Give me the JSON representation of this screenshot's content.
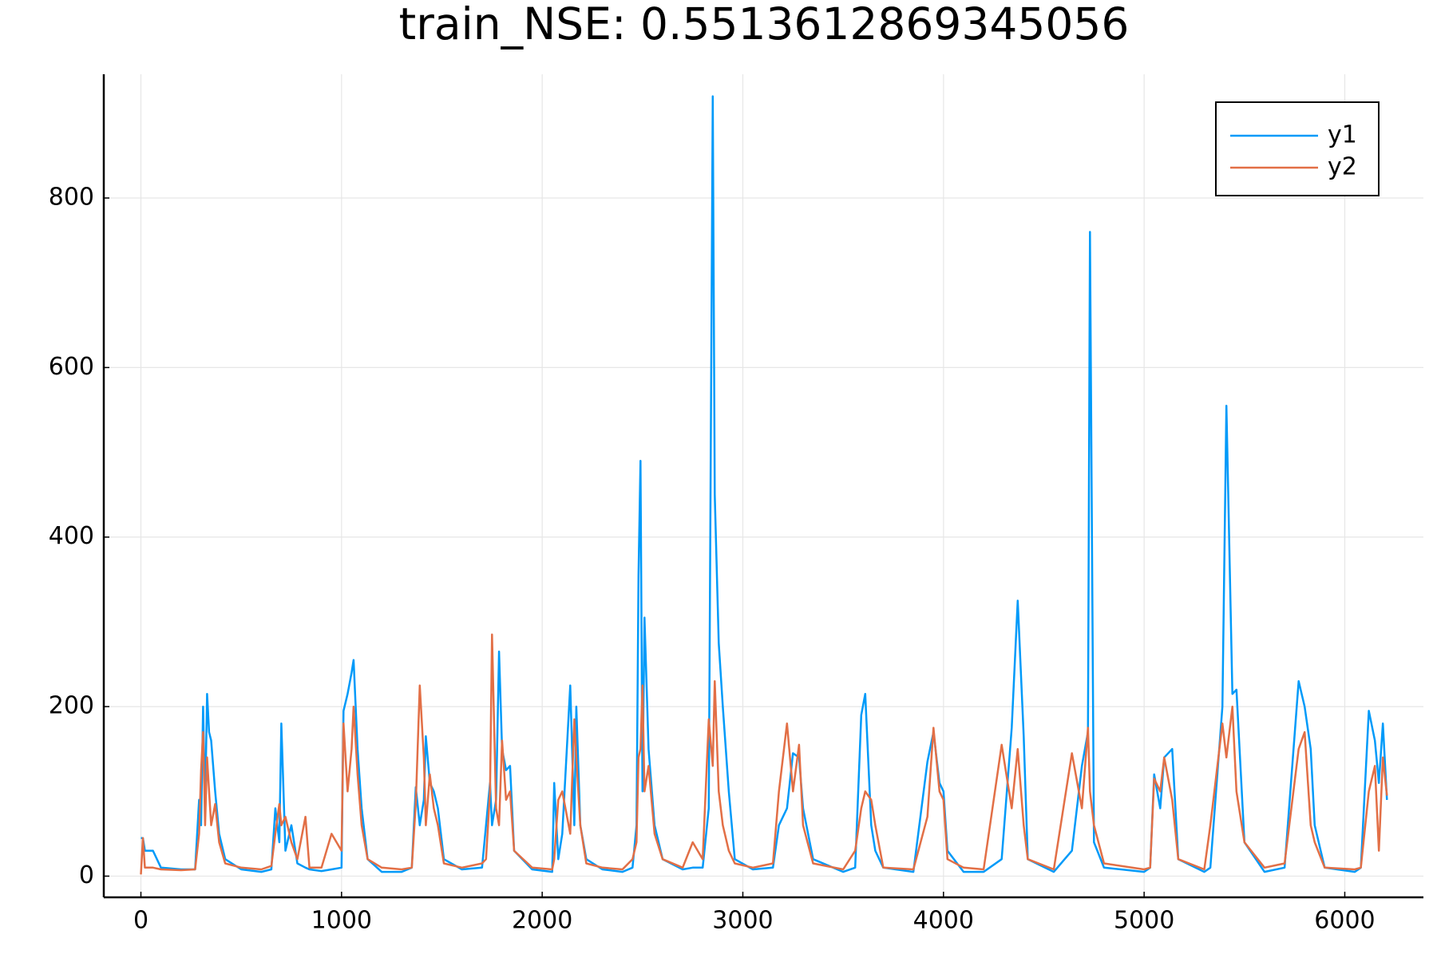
{
  "chart_data": {
    "type": "line",
    "title": "train_NSE: 0.5513612869345056",
    "x": [
      0,
      10,
      20,
      60,
      100,
      200,
      270,
      290,
      300,
      310,
      320,
      330,
      340,
      350,
      370,
      390,
      420,
      500,
      600,
      650,
      670,
      690,
      700,
      720,
      750,
      780,
      820,
      840,
      900,
      950,
      1000,
      1010,
      1030,
      1050,
      1060,
      1080,
      1100,
      1130,
      1200,
      1300,
      1350,
      1370,
      1390,
      1410,
      1420,
      1440,
      1460,
      1480,
      1510,
      1600,
      1700,
      1720,
      1740,
      1750,
      1770,
      1785,
      1800,
      1820,
      1840,
      1860,
      1950,
      2050,
      2060,
      2080,
      2100,
      2140,
      2160,
      2170,
      2190,
      2220,
      2300,
      2400,
      2450,
      2470,
      2480,
      2490,
      2500,
      2510,
      2530,
      2560,
      2600,
      2700,
      2750,
      2800,
      2830,
      2850,
      2860,
      2880,
      2900,
      2930,
      2960,
      3050,
      3150,
      3180,
      3220,
      3250,
      3280,
      3300,
      3350,
      3500,
      3560,
      3590,
      3610,
      3640,
      3660,
      3700,
      3850,
      3920,
      3950,
      3980,
      4000,
      4020,
      4100,
      4200,
      4290,
      4340,
      4370,
      4400,
      4420,
      4550,
      4640,
      4690,
      4720,
      4730,
      4750,
      4800,
      5000,
      5030,
      5050,
      5080,
      5100,
      5140,
      5170,
      5300,
      5330,
      5390,
      5410,
      5440,
      5460,
      5500,
      5600,
      5700,
      5770,
      5800,
      5830,
      5850,
      5900,
      6050,
      6080,
      6120,
      6150,
      6170,
      6190,
      6210
    ],
    "series": [
      {
        "name": "y1",
        "color": "#009af9",
        "values": [
          45,
          45,
          30,
          30,
          10,
          8,
          8,
          90,
          60,
          200,
          80,
          215,
          170,
          160,
          100,
          50,
          20,
          8,
          5,
          8,
          80,
          40,
          180,
          30,
          60,
          15,
          10,
          8,
          6,
          8,
          10,
          195,
          215,
          240,
          255,
          150,
          80,
          20,
          5,
          5,
          10,
          105,
          60,
          90,
          165,
          110,
          100,
          80,
          20,
          8,
          10,
          60,
          110,
          60,
          90,
          265,
          150,
          125,
          130,
          30,
          8,
          5,
          110,
          20,
          50,
          225,
          60,
          200,
          60,
          20,
          8,
          5,
          10,
          60,
          355,
          490,
          100,
          305,
          150,
          60,
          20,
          8,
          10,
          10,
          80,
          920,
          450,
          275,
          200,
          100,
          20,
          8,
          10,
          60,
          80,
          145,
          140,
          80,
          20,
          5,
          10,
          190,
          215,
          60,
          30,
          10,
          5,
          135,
          170,
          110,
          100,
          30,
          5,
          5,
          20,
          175,
          325,
          165,
          20,
          5,
          30,
          130,
          170,
          760,
          40,
          10,
          5,
          10,
          120,
          80,
          140,
          150,
          20,
          5,
          10,
          200,
          555,
          215,
          220,
          40,
          5,
          10,
          230,
          200,
          150,
          60,
          10,
          5,
          10,
          195,
          160,
          110,
          180,
          90
        ]
      },
      {
        "name": "y2",
        "color": "#e26f46",
        "values": [
          2,
          45,
          10,
          10,
          8,
          7,
          8,
          50,
          125,
          170,
          60,
          140,
          100,
          60,
          85,
          40,
          15,
          10,
          8,
          12,
          50,
          85,
          60,
          70,
          40,
          20,
          70,
          10,
          10,
          50,
          30,
          180,
          100,
          150,
          200,
          120,
          60,
          20,
          10,
          8,
          10,
          85,
          225,
          140,
          60,
          120,
          80,
          60,
          15,
          10,
          15,
          20,
          100,
          285,
          80,
          60,
          160,
          90,
          100,
          30,
          10,
          8,
          20,
          90,
          100,
          50,
          185,
          140,
          60,
          15,
          10,
          8,
          20,
          40,
          140,
          150,
          225,
          100,
          130,
          50,
          20,
          10,
          40,
          20,
          185,
          130,
          230,
          100,
          60,
          30,
          15,
          10,
          15,
          100,
          180,
          100,
          155,
          60,
          15,
          8,
          30,
          80,
          100,
          90,
          60,
          10,
          8,
          70,
          175,
          100,
          90,
          20,
          10,
          8,
          155,
          80,
          150,
          60,
          20,
          8,
          145,
          80,
          175,
          100,
          60,
          15,
          8,
          10,
          115,
          100,
          140,
          90,
          20,
          8,
          60,
          180,
          140,
          200,
          100,
          40,
          10,
          15,
          150,
          170,
          60,
          40,
          10,
          8,
          10,
          100,
          130,
          30,
          140,
          95
        ]
      }
    ],
    "xlim": [
      -185,
      6392
    ],
    "ylim": [
      -25,
      946
    ],
    "xticks": [
      0,
      1000,
      2000,
      3000,
      4000,
      5000,
      6000
    ],
    "yticks": [
      0,
      200,
      400,
      600,
      800
    ],
    "grid": true,
    "legend": "top-right"
  }
}
